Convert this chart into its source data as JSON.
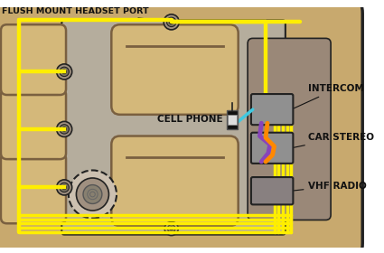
{
  "bg_color": "#ffffff",
  "car_body_color": "#c8a96e",
  "interior_color": "#b5ad9d",
  "seat_color": "#d4b87a",
  "seat_edge": "#7a6040",
  "wire_yellow": "#FFEE00",
  "wire_cyan": "#40C8E0",
  "wire_purple": "#8844BB",
  "wire_orange": "#FF8800",
  "label_flush": "FLUSH MOUNT HEADSET PORT",
  "label_intercom": "INTERCOM",
  "label_car_stereo": "CAR STEREO",
  "label_vhf": "VHF RADIO",
  "label_cell": "CELL PHONE",
  "outline_color": "#222222",
  "text_color": "#111111",
  "right_panel_color": "#9a8878",
  "bolt_outer": "#a09080",
  "bolt_mid": "#787060",
  "bolt_inner": "#505048"
}
